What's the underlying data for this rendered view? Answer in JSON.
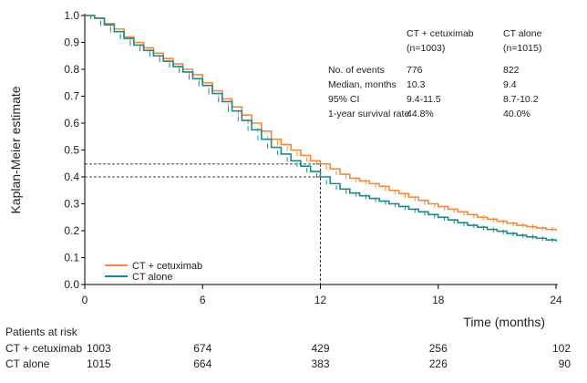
{
  "chart_data": {
    "type": "line",
    "subtype": "kaplan-meier",
    "title": "",
    "ylabel": "Kaplan-Meier estimate",
    "xlabel": "Time (months)",
    "xlim": [
      0,
      24
    ],
    "ylim": [
      0,
      1.0
    ],
    "x_ticks": [
      0,
      6,
      12,
      18,
      24
    ],
    "y_ticks": [
      0.0,
      0.1,
      0.2,
      0.3,
      0.4,
      0.5,
      0.6,
      0.7,
      0.8,
      0.9,
      1.0
    ],
    "x_tick_labels": [
      "0",
      "6",
      "12",
      "18",
      "24"
    ],
    "y_tick_labels": [
      "0.0",
      "0.1",
      "0.2",
      "0.3",
      "0.4",
      "0.5",
      "0.6",
      "0.7",
      "0.8",
      "0.9",
      "1.0"
    ],
    "grid": false,
    "legend_position": "bottom-left",
    "series": [
      {
        "name": "CT + cetuximab",
        "color": "#f08a3c",
        "x": [
          0,
          0.5,
          1,
          1.5,
          2,
          2.5,
          3,
          3.5,
          4,
          4.5,
          5,
          5.5,
          6,
          6.5,
          7,
          7.5,
          8,
          8.5,
          9,
          9.5,
          10,
          10.5,
          11,
          11.5,
          12,
          12.5,
          13,
          13.5,
          14,
          14.5,
          15,
          15.5,
          16,
          16.5,
          17,
          17.5,
          18,
          18.5,
          19,
          19.5,
          20,
          20.5,
          21,
          21.5,
          22,
          22.5,
          23,
          23.5,
          24
        ],
        "y": [
          1.0,
          0.99,
          0.97,
          0.95,
          0.92,
          0.9,
          0.88,
          0.86,
          0.84,
          0.82,
          0.8,
          0.78,
          0.75,
          0.72,
          0.69,
          0.66,
          0.63,
          0.6,
          0.57,
          0.54,
          0.52,
          0.5,
          0.48,
          0.46,
          0.448,
          0.43,
          0.41,
          0.395,
          0.385,
          0.375,
          0.365,
          0.35,
          0.338,
          0.325,
          0.313,
          0.3,
          0.29,
          0.28,
          0.27,
          0.26,
          0.25,
          0.243,
          0.235,
          0.228,
          0.22,
          0.215,
          0.21,
          0.205,
          0.2
        ]
      },
      {
        "name": "CT alone",
        "color": "#1c8a8a",
        "x": [
          0,
          0.5,
          1,
          1.5,
          2,
          2.5,
          3,
          3.5,
          4,
          4.5,
          5,
          5.5,
          6,
          6.5,
          7,
          7.5,
          8,
          8.5,
          9,
          9.5,
          10,
          10.5,
          11,
          11.5,
          12,
          12.5,
          13,
          13.5,
          14,
          14.5,
          15,
          15.5,
          16,
          16.5,
          17,
          17.5,
          18,
          18.5,
          19,
          19.5,
          20,
          20.5,
          21,
          21.5,
          22,
          22.5,
          23,
          23.5,
          24
        ],
        "y": [
          1.0,
          0.99,
          0.965,
          0.94,
          0.915,
          0.89,
          0.87,
          0.85,
          0.83,
          0.81,
          0.79,
          0.765,
          0.74,
          0.71,
          0.68,
          0.645,
          0.61,
          0.575,
          0.54,
          0.51,
          0.485,
          0.46,
          0.44,
          0.42,
          0.4,
          0.375,
          0.355,
          0.34,
          0.33,
          0.32,
          0.31,
          0.3,
          0.29,
          0.28,
          0.27,
          0.26,
          0.25,
          0.24,
          0.23,
          0.22,
          0.213,
          0.205,
          0.198,
          0.19,
          0.183,
          0.177,
          0.172,
          0.166,
          0.16
        ]
      }
    ],
    "reference_lines": {
      "median_x": 12,
      "y_values": [
        0.448,
        0.4
      ]
    },
    "stats_table": {
      "col_headers": [
        "CT + cetuximab\n(n=1003)",
        "CT alone\n(n=1015)"
      ],
      "header_lines": [
        [
          "CT + cetuximab",
          "(n=1003)"
        ],
        [
          "CT alone",
          "(n=1015)"
        ]
      ],
      "rows": [
        {
          "label": "No. of events",
          "values": [
            "776",
            "822"
          ]
        },
        {
          "label": "Median, months",
          "values": [
            "10.3",
            "9.4"
          ]
        },
        {
          "label": "95% CI",
          "values": [
            "9.4-11.5",
            "8.7-10.2"
          ]
        },
        {
          "label": "1-year survival rate",
          "values": [
            "44.8%",
            "40.0%"
          ]
        }
      ]
    },
    "risk_table": {
      "title": "Patients at risk",
      "rows": [
        {
          "label": "CT + cetuximab",
          "values": [
            "1003",
            "674",
            "429",
            "256",
            "102"
          ]
        },
        {
          "label": "CT alone",
          "values": [
            "1015",
            "664",
            "383",
            "226",
            "90"
          ]
        }
      ]
    }
  }
}
